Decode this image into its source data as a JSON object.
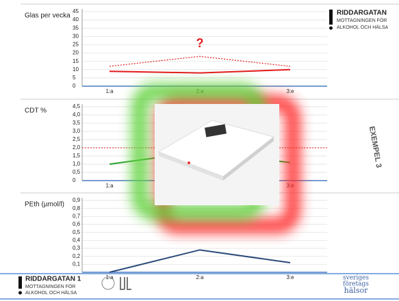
{
  "chart_data": [
    {
      "type": "line",
      "title": "Glas per vecka",
      "categories": [
        "1:a",
        "2:a",
        "3:e"
      ],
      "ylim": [
        0,
        45
      ],
      "yticks": [
        0,
        5,
        10,
        15,
        20,
        25,
        30,
        35,
        40,
        45
      ],
      "grid": true,
      "series": [
        {
          "color": "#e41a1c",
          "dash": false,
          "values": [
            9,
            8,
            10
          ]
        },
        {
          "color": "#e41a1c",
          "dash": true,
          "values": [
            12,
            18,
            12
          ]
        }
      ],
      "annotation": "?"
    },
    {
      "type": "line",
      "title": "CDT %",
      "categories": [
        "1:a",
        "2:a",
        "3:e"
      ],
      "ylim": [
        0,
        4.5
      ],
      "yticks": [
        {
          "value": 0,
          "label": "0"
        },
        {
          "value": 0.5,
          "label": "0,5"
        },
        {
          "value": 1,
          "label": "1,0"
        },
        {
          "value": 1.5,
          "label": "1,5"
        },
        {
          "value": 2,
          "label": "2,0"
        },
        {
          "value": 2.5,
          "label": "2,5"
        },
        {
          "value": 3,
          "label": "3,0"
        },
        {
          "value": 3.5,
          "label": "3,5"
        },
        {
          "value": 4,
          "label": "4,0"
        },
        {
          "value": 4.5,
          "label": "4,5"
        }
      ],
      "grid": true,
      "series": [
        {
          "color": "#2ca02c",
          "dash": false,
          "values": [
            1.0,
            1.75,
            1.1
          ]
        }
      ],
      "reference_line": {
        "value": 2,
        "color": "#e41a1c"
      }
    },
    {
      "type": "line",
      "title": "PEth (µmol/l)",
      "categories": [
        "1:a",
        "2:a",
        "3:e"
      ],
      "ylim": [
        0,
        0.9
      ],
      "yticks": [
        {
          "value": 0.1,
          "label": "0,1"
        },
        {
          "value": 0.2,
          "label": "0,2"
        },
        {
          "value": 0.3,
          "label": "0,3"
        },
        {
          "value": 0.4,
          "label": "0,4"
        },
        {
          "value": 0.5,
          "label": "0,5"
        },
        {
          "value": 0.6,
          "label": "0,6"
        },
        {
          "value": 0.7,
          "label": "0,7"
        },
        {
          "value": 0.8,
          "label": "0,8"
        },
        {
          "value": 0.9,
          "label": "0,9"
        }
      ],
      "grid": true,
      "series": [
        {
          "color": "#2b4a7a",
          "dash": false,
          "values": [
            0,
            0.28,
            0.12
          ]
        }
      ]
    }
  ],
  "slide": {
    "logo_top": {
      "name": "RIDDARGATAN",
      "line1": "MOTTAGNINGEN FÖR",
      "line2": "ALKOHOL OCH HÄLSA"
    },
    "logo_bottom": {
      "name": "RIDDARGATAN 1",
      "line1": "MOTTAGNINGEN FÖR",
      "line2": "ALKOHOL OCH HÄLSA"
    },
    "example": "EXEMPEL 3",
    "partner": [
      "sveriges",
      "företags",
      "hälsor"
    ]
  }
}
